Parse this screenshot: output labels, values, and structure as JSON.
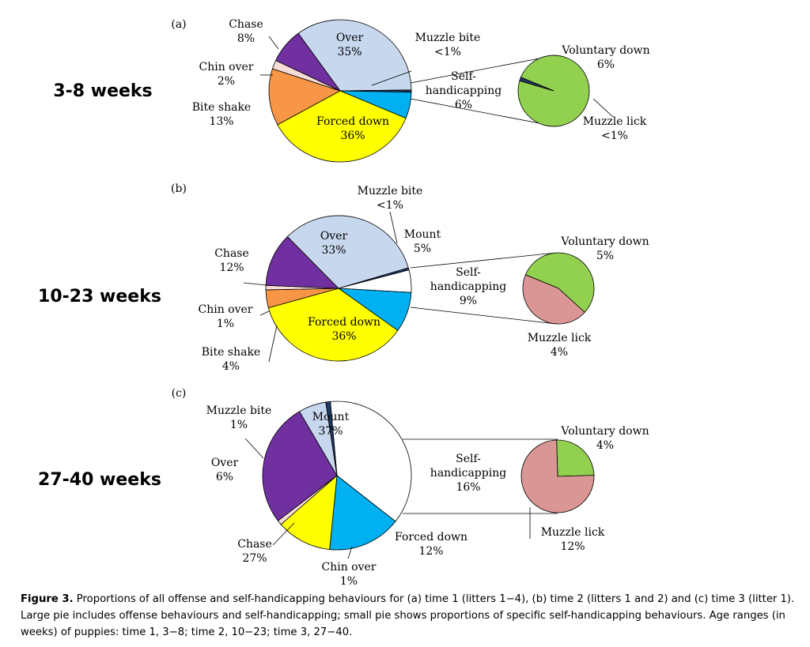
{
  "caption": {
    "label": "Figure 3.",
    "text": "Proportions of all offense and self-handicapping behaviours for (a) time 1 (litters 1−4), (b) time 2 (litters 1 and 2) and (c) time 3 (litter 1). Large pie includes offense behaviours and self-handicapping; small pie shows proportions of specific self-handicapping behaviours. Age ranges (in weeks) of puppies: time 1, 3−8; time 2, 10−23; time 3, 27−40."
  },
  "colors": {
    "over": "#c7d7ee",
    "chase": "#7030a0",
    "chin_over": "#f8dcd8",
    "bite_shake": "#f79646",
    "forced_down": "#ffff00",
    "self_handicapping": "#00b0f0",
    "muzzle_bite": "#1f3864",
    "mount": "#ffffff",
    "voluntary_down": "#92d050",
    "muzzle_lick": "#da9694"
  },
  "chart_data": [
    {
      "type": "pie",
      "panel": "(a)",
      "row_label": "3-8 weeks",
      "large_pie": [
        {
          "label": "Over",
          "value_text": "35%",
          "value": 35,
          "color": "#c7d7ee"
        },
        {
          "label": "Muzzle bite",
          "value_text": "<1%",
          "value": 0.5,
          "color": "#1f3864"
        },
        {
          "label": "Self-handicapping",
          "value_text": "6%",
          "value": 6,
          "color": "#00b0f0"
        },
        {
          "label": "Forced down",
          "value_text": "36%",
          "value": 36,
          "color": "#ffff00"
        },
        {
          "label": "Bite shake",
          "value_text": "13%",
          "value": 13,
          "color": "#f79646"
        },
        {
          "label": "Chin over",
          "value_text": "2%",
          "value": 2,
          "color": "#f8dcd8"
        },
        {
          "label": "Chase",
          "value_text": "8%",
          "value": 8,
          "color": "#7030a0"
        }
      ],
      "small_pie": [
        {
          "label": "Voluntary down",
          "value_text": "6%",
          "value": 6,
          "color": "#92d050"
        },
        {
          "label": "Muzzle lick",
          "value_text": "<1%",
          "value": 0.1,
          "color": "#1f3864"
        }
      ]
    },
    {
      "type": "pie",
      "panel": "(b)",
      "row_label": "10-23 weeks",
      "large_pie": [
        {
          "label": "Over",
          "value_text": "33%",
          "value": 33,
          "color": "#c7d7ee"
        },
        {
          "label": "Muzzle bite",
          "value_text": "<1%",
          "value": 0.5,
          "color": "#1f3864"
        },
        {
          "label": "Mount",
          "value_text": "5%",
          "value": 5,
          "color": "#ffffff"
        },
        {
          "label": "Self-handicapping",
          "value_text": "9%",
          "value": 9,
          "color": "#00b0f0"
        },
        {
          "label": "Forced down",
          "value_text": "36%",
          "value": 36,
          "color": "#ffff00"
        },
        {
          "label": "Bite shake",
          "value_text": "4%",
          "value": 4,
          "color": "#f79646"
        },
        {
          "label": "Chin over",
          "value_text": "1%",
          "value": 1,
          "color": "#f8dcd8"
        },
        {
          "label": "Chase",
          "value_text": "12%",
          "value": 12,
          "color": "#7030a0"
        }
      ],
      "small_pie": [
        {
          "label": "Voluntary down",
          "value_text": "5%",
          "value": 5,
          "color": "#92d050"
        },
        {
          "label": "Muzzle lick",
          "value_text": "4%",
          "value": 4,
          "color": "#da9694"
        }
      ]
    },
    {
      "type": "pie",
      "panel": "(c)",
      "row_label": "27-40 weeks",
      "large_pie": [
        {
          "label": "Mount",
          "value_text": "37%",
          "value": 37,
          "color": "#ffffff"
        },
        {
          "label": "Self-handicapping",
          "value_text": "16%",
          "value": 16,
          "color": "#00b0f0"
        },
        {
          "label": "Forced down",
          "value_text": "12%",
          "value": 12,
          "color": "#ffff00"
        },
        {
          "label": "Chin over",
          "value_text": "1%",
          "value": 1,
          "color": "#f8dcd8"
        },
        {
          "label": "Chase",
          "value_text": "27%",
          "value": 27,
          "color": "#7030a0"
        },
        {
          "label": "Over",
          "value_text": "6%",
          "value": 6,
          "color": "#c7d7ee"
        },
        {
          "label": "Muzzle bite",
          "value_text": "1%",
          "value": 1,
          "color": "#1f3864"
        }
      ],
      "small_pie": [
        {
          "label": "Voluntary down",
          "value_text": "4%",
          "value": 4,
          "color": "#92d050"
        },
        {
          "label": "Muzzle lick",
          "value_text": "12%",
          "value": 12,
          "color": "#da9694"
        }
      ]
    }
  ]
}
